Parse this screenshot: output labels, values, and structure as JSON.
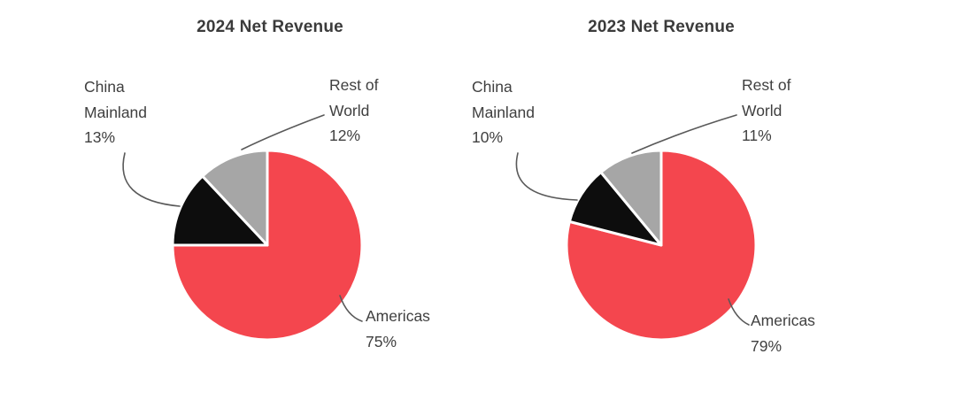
{
  "chart_data": [
    {
      "type": "pie",
      "title": "2024 Net Revenue",
      "start_angle_deg": 0,
      "direction": "clockwise",
      "slice_border_color": "#ffffff",
      "leader_line_color": "#595959",
      "text_color": "#404040",
      "slices": [
        {
          "label": "Americas",
          "value": 75,
          "display": "75%",
          "color": "#f4464e"
        },
        {
          "label": "China Mainland",
          "value": 13,
          "display": "13%",
          "color": "#0d0d0d"
        },
        {
          "label": "Rest of World",
          "value": 12,
          "display": "12%",
          "color": "#a6a6a6"
        }
      ]
    },
    {
      "type": "pie",
      "title": "2023 Net Revenue",
      "start_angle_deg": 0,
      "direction": "clockwise",
      "slice_border_color": "#ffffff",
      "leader_line_color": "#595959",
      "text_color": "#404040",
      "slices": [
        {
          "label": "Americas",
          "value": 79,
          "display": "79%",
          "color": "#f4464e"
        },
        {
          "label": "China Mainland",
          "value": 10,
          "display": "10%",
          "color": "#0d0d0d"
        },
        {
          "label": "Rest of World",
          "value": 11,
          "display": "11%",
          "color": "#a6a6a6"
        }
      ]
    }
  ]
}
